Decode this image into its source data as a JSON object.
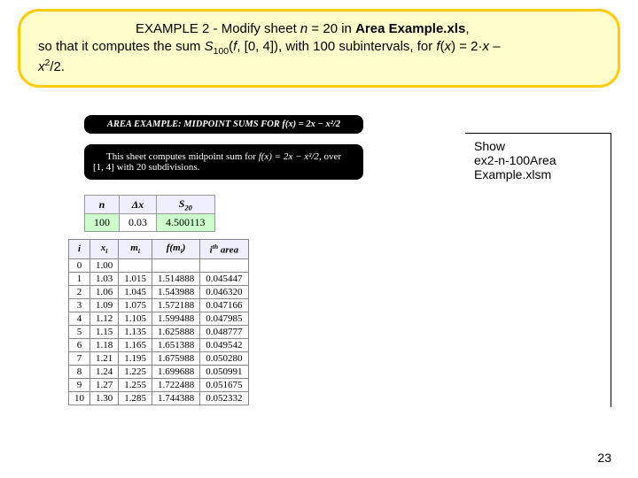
{
  "example": {
    "prefix": "EXAMPLE 2 - ",
    "line1a": "Modify sheet ",
    "line1b": "n",
    "line1c": " = 20 in ",
    "line1d": "Area Example.xls",
    "line1e": ",",
    "line2a": "so that it computes the sum ",
    "line2b": "S",
    "line2sub": "100",
    "line2c": "(",
    "line2d": "f",
    "line2e": ", [0, 4]), with 100 subintervals, for ",
    "line2f": "f",
    "line2g": "(",
    "line2h": "x",
    "line2i": ") = 2·",
    "line2j": "x",
    "line2k": " – ",
    "line3a": "x",
    "line3sup": "2",
    "line3b": "/2."
  },
  "box1": {
    "text": "AREA EXAMPLE:  MIDPOINT SUMS FOR f(x) = 2x − x²/2"
  },
  "box2": {
    "l1a": "This sheet computes midpoint sum for ",
    "l1b": "f(x) = 2x − x²/2",
    "l1c": ", over",
    "l2": "[1, 4] with 20 subdivisions."
  },
  "ndx": {
    "h1": "n",
    "h2": "Δx",
    "h3": "S",
    "h3sub": "20",
    "v1": "100",
    "v2": "0.03",
    "v3": "4.500113"
  },
  "dataTable": {
    "headers": {
      "i": "i",
      "xi": "x",
      "xi_sub": "i",
      "mi": "m",
      "mi_sub": "i",
      "fmi": "f(m",
      "fmi_sub": "i",
      "fmi2": ")",
      "area": "i",
      "area_sup": "th",
      "area2": " area"
    },
    "rows": [
      {
        "i": "0",
        "xi": "1.00",
        "mi": "",
        "fmi": "",
        "area": ""
      },
      {
        "i": "1",
        "xi": "1.03",
        "mi": "1.015",
        "fmi": "1.514888",
        "area": "0.045447"
      },
      {
        "i": "2",
        "xi": "1.06",
        "mi": "1.045",
        "fmi": "1.543988",
        "area": "0.046320"
      },
      {
        "i": "3",
        "xi": "1.09",
        "mi": "1.075",
        "fmi": "1.572188",
        "area": "0.047166"
      },
      {
        "i": "4",
        "xi": "1.12",
        "mi": "1.105",
        "fmi": "1.599488",
        "area": "0.047985"
      },
      {
        "i": "5",
        "xi": "1.15",
        "mi": "1.135",
        "fmi": "1.625888",
        "area": "0.048777"
      },
      {
        "i": "6",
        "xi": "1.18",
        "mi": "1.165",
        "fmi": "1.651388",
        "area": "0.049542"
      },
      {
        "i": "7",
        "xi": "1.21",
        "mi": "1.195",
        "fmi": "1.675988",
        "area": "0.050280"
      },
      {
        "i": "8",
        "xi": "1.24",
        "mi": "1.225",
        "fmi": "1.699688",
        "area": "0.050991"
      },
      {
        "i": "9",
        "xi": "1.27",
        "mi": "1.255",
        "fmi": "1.722488",
        "area": "0.051675"
      },
      {
        "i": "10",
        "xi": "1.30",
        "mi": "1.285",
        "fmi": "1.744388",
        "area": "0.052332"
      }
    ]
  },
  "showBox": {
    "l1": "Show",
    "l2": "ex2-n-100Area Example.xlsm"
  },
  "pageNum": "23"
}
